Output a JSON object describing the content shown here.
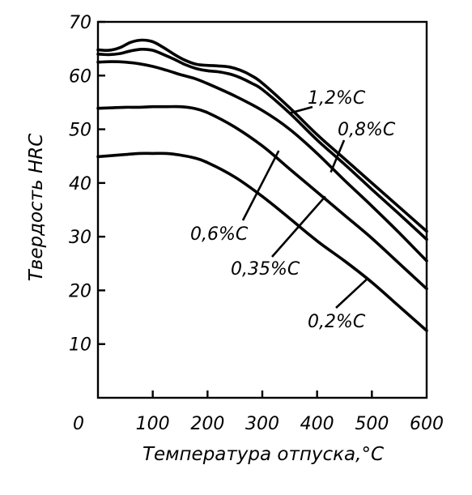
{
  "chart_data": {
    "type": "line",
    "title": "",
    "xlabel": "Температура отпуска,°С",
    "ylabel": "Твердость HRC",
    "xlim": [
      0,
      600
    ],
    "ylim": [
      0,
      70
    ],
    "x_ticks": [
      "0",
      "100",
      "200",
      "300",
      "400",
      "500",
      "600"
    ],
    "y_ticks": [
      "10",
      "20",
      "30",
      "40",
      "50",
      "60",
      "70"
    ],
    "grid": false,
    "legend": "inline labels",
    "series": [
      {
        "name": "1,2%С",
        "x": [
          0,
          20,
          40,
          60,
          80,
          100,
          120,
          140,
          160,
          180,
          200,
          220,
          240,
          260,
          280,
          300,
          350,
          400,
          450,
          500,
          550,
          600
        ],
        "y": [
          64.8,
          64.7,
          65.2,
          66.2,
          66.6,
          66.3,
          65.2,
          63.9,
          62.8,
          62.1,
          61.9,
          61.8,
          61.6,
          61.0,
          60.0,
          58.6,
          54.0,
          49.0,
          44.5,
          40.0,
          35.5,
          31.0
        ]
      },
      {
        "name": "0,8%С",
        "x": [
          0,
          20,
          40,
          60,
          80,
          100,
          120,
          140,
          160,
          180,
          200,
          220,
          240,
          260,
          280,
          300,
          350,
          400,
          450,
          500,
          550,
          600
        ],
        "y": [
          64.0,
          63.9,
          64.1,
          64.6,
          64.9,
          64.7,
          63.9,
          63.0,
          62.0,
          61.3,
          60.9,
          60.7,
          60.3,
          59.6,
          58.6,
          57.4,
          53.0,
          48.0,
          43.5,
          38.8,
          34.2,
          29.5
        ]
      },
      {
        "name": "0,6%С",
        "x": [
          0,
          25,
          50,
          75,
          100,
          125,
          150,
          175,
          200,
          250,
          300,
          350,
          400,
          450,
          500,
          550,
          600
        ],
        "y": [
          62.5,
          62.6,
          62.5,
          62.2,
          61.7,
          61.0,
          60.2,
          59.5,
          58.5,
          56.2,
          53.5,
          50.0,
          45.5,
          40.5,
          35.7,
          30.7,
          25.5
        ]
      },
      {
        "name": "0,35%С",
        "x": [
          0,
          25,
          50,
          75,
          100,
          125,
          150,
          175,
          200,
          250,
          300,
          350,
          400,
          450,
          500,
          550,
          600
        ],
        "y": [
          53.9,
          54.0,
          54.1,
          54.1,
          54.2,
          54.2,
          54.2,
          53.9,
          53.1,
          50.4,
          46.9,
          42.6,
          38.3,
          34.0,
          29.7,
          25.0,
          20.3
        ]
      },
      {
        "name": "0,2%С",
        "x": [
          0,
          25,
          50,
          75,
          100,
          125,
          150,
          175,
          200,
          250,
          300,
          350,
          400,
          450,
          500,
          550,
          600
        ],
        "y": [
          44.9,
          45.1,
          45.3,
          45.5,
          45.5,
          45.5,
          45.2,
          44.7,
          43.8,
          41.1,
          37.5,
          33.4,
          29.2,
          25.5,
          21.5,
          17.0,
          12.5
        ]
      }
    ],
    "annotations": [
      {
        "text": "1,2%С",
        "pointer_x": 350,
        "pointer_y": 53
      },
      {
        "text": "0,8%С",
        "pointer_x": 425,
        "pointer_y": 42
      },
      {
        "text": "0,6%С",
        "pointer_x": 330,
        "pointer_y": 46
      },
      {
        "text": "0,35%С",
        "pointer_x": 415,
        "pointer_y": 37.5
      },
      {
        "text": "0,2%С",
        "pointer_x": 490,
        "pointer_y": 22
      }
    ]
  }
}
